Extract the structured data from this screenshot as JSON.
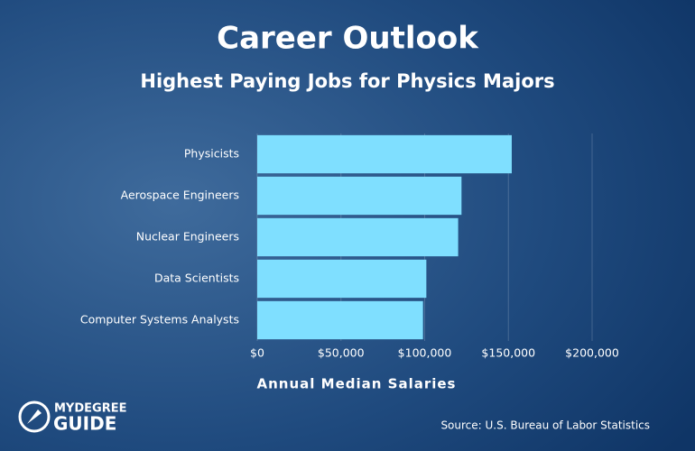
{
  "chart_data": {
    "type": "bar",
    "orientation": "horizontal",
    "title": "Career Outlook",
    "subtitle": "Highest Paying Jobs for Physics Majors",
    "xlabel": "Annual Median Salaries",
    "categories": [
      "Physicists",
      "Aerospace Engineers",
      "Nuclear Engineers",
      "Data Scientists",
      "Computer Systems Analysts"
    ],
    "values": [
      152000,
      122000,
      120000,
      101000,
      99000
    ],
    "color": "#7fdfff",
    "xlim": [
      0,
      200000
    ],
    "xticks": [
      {
        "value": 0,
        "label": "$0"
      },
      {
        "value": 50000,
        "label": "$50,000"
      },
      {
        "value": 100000,
        "label": "$100,000"
      },
      {
        "value": 150000,
        "label": "$150,000"
      },
      {
        "value": 200000,
        "label": "$200,000"
      }
    ],
    "grid": true,
    "source": "Source: U.S. Bureau of Labor Statistics"
  },
  "logo": {
    "line1": "MYDEGREE",
    "line2": "GUIDE"
  }
}
